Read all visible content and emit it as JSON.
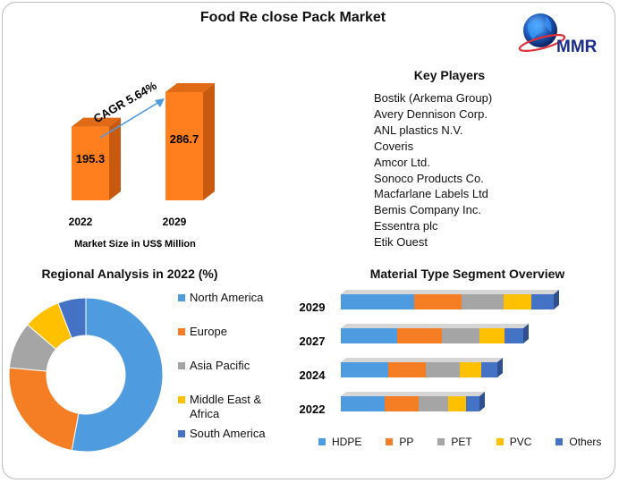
{
  "title": "Food Re close Pack Market",
  "logo": {
    "text": "MMR",
    "icon": "globe-icon"
  },
  "market_size": {
    "cagr_label": "CAGR 5.64%",
    "xlabel": "Market Size in US$ Million",
    "bar_color": "#ff7f1f",
    "bar_side_color": "#c85a10",
    "bar_top_color": "#e06a16"
  },
  "key_players": {
    "title": "Key Players",
    "items": [
      "Bostik (Arkema Group)",
      "Avery Dennison Corp.",
      "ANL plastics N.V.",
      "Coveris",
      "Amcor Ltd.",
      "Sonoco Products Co.",
      "Macfarlane Labels Ltd",
      "Bemis Company Inc.",
      "Essentra plc",
      "Etik Ouest"
    ]
  },
  "regional": {
    "title": "Regional Analysis in 2022 (%)",
    "legend": [
      {
        "label": "North America",
        "color": "#4f9be0"
      },
      {
        "label": "Europe",
        "color": "#f57e24"
      },
      {
        "label": "Asia Pacific",
        "color": "#a5a5a5"
      },
      {
        "label": "Middle East & Africa",
        "color": "#ffc000"
      },
      {
        "label": "South America",
        "color": "#4472c4"
      }
    ]
  },
  "material": {
    "title": "Material Type Segment Overview",
    "legend": [
      {
        "label": "HDPE",
        "color": "#4f9be0"
      },
      {
        "label": "PP",
        "color": "#f57e24"
      },
      {
        "label": "PET",
        "color": "#a5a5a5"
      },
      {
        "label": "PVC",
        "color": "#ffc000"
      },
      {
        "label": "Others",
        "color": "#4472c4"
      }
    ]
  },
  "chart_data": [
    {
      "type": "bar",
      "categories": [
        "2022",
        "2029"
      ],
      "values": [
        195.3,
        286.7
      ],
      "data_labels": [
        "195.3",
        "286.7"
      ],
      "xlabel": "Market Size in US$ Million",
      "annotation": "CAGR 5.64%",
      "ylim": [
        0,
        286.7
      ]
    },
    {
      "type": "pie",
      "title": "Regional Analysis in 2022 (%)",
      "labels": [
        "North America",
        "Europe",
        "Asia Pacific",
        "Middle East & Africa",
        "South America"
      ],
      "values": [
        54,
        24,
        10,
        8,
        6
      ],
      "donut": true
    },
    {
      "type": "bar",
      "orientation": "horizontal",
      "stacked": true,
      "title": "Material Type Segment Overview",
      "categories": [
        "2029",
        "2027",
        "2024",
        "2022"
      ],
      "series": [
        {
          "name": "HDPE",
          "values": [
            82,
            63,
            53,
            49
          ]
        },
        {
          "name": "PP",
          "values": [
            53,
            50,
            42,
            38
          ]
        },
        {
          "name": "PET",
          "values": [
            47,
            42,
            38,
            33
          ]
        },
        {
          "name": "PVC",
          "values": [
            31,
            28,
            24,
            20
          ]
        },
        {
          "name": "Others",
          "values": [
            25,
            21,
            18,
            15
          ]
        }
      ]
    }
  ]
}
